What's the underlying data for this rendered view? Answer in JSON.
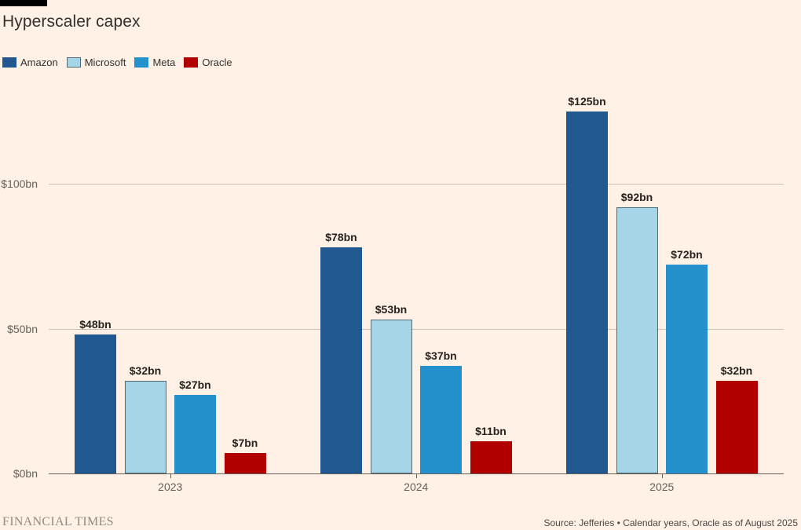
{
  "title": "Hyperscaler capex",
  "top_marker_color": "#000000",
  "background_color": "#FFF1E5",
  "chart_data": {
    "type": "bar",
    "title": "Hyperscaler capex",
    "categories": [
      "2023",
      "2024",
      "2025"
    ],
    "series": [
      {
        "name": "Amazon",
        "color": "#20588F",
        "values": [
          48,
          78,
          125
        ]
      },
      {
        "name": "Microsoft",
        "color": "#A5D5E6",
        "border_color": "#4F6B76",
        "values": [
          32,
          53,
          92
        ]
      },
      {
        "name": "Meta",
        "color": "#2490CC",
        "values": [
          27,
          37,
          72
        ]
      },
      {
        "name": "Oracle",
        "color": "#B20000",
        "values": [
          7,
          11,
          32
        ]
      }
    ],
    "data_labels": [
      [
        "$48bn",
        "$78bn",
        "$125bn"
      ],
      [
        "$32bn",
        "$53bn",
        "$92bn"
      ],
      [
        "$27bn",
        "$37bn",
        "$72bn"
      ],
      [
        "$7bn",
        "$11bn",
        "$32bn"
      ]
    ],
    "value_prefix": "$",
    "value_suffix": "bn",
    "y_ticks": [
      {
        "value": 0,
        "label": "$0bn"
      },
      {
        "value": 50,
        "label": "$50bn"
      },
      {
        "value": 100,
        "label": "$100bn"
      }
    ],
    "ylim": [
      0,
      130
    ],
    "xlabel": "",
    "ylabel": "",
    "grid": "horizontal",
    "legend_position": "top-left"
  },
  "footer": {
    "brand": "FINANCIAL TIMES",
    "source": "Source: Jefferies • Calendar years, Oracle as of August 2025"
  }
}
